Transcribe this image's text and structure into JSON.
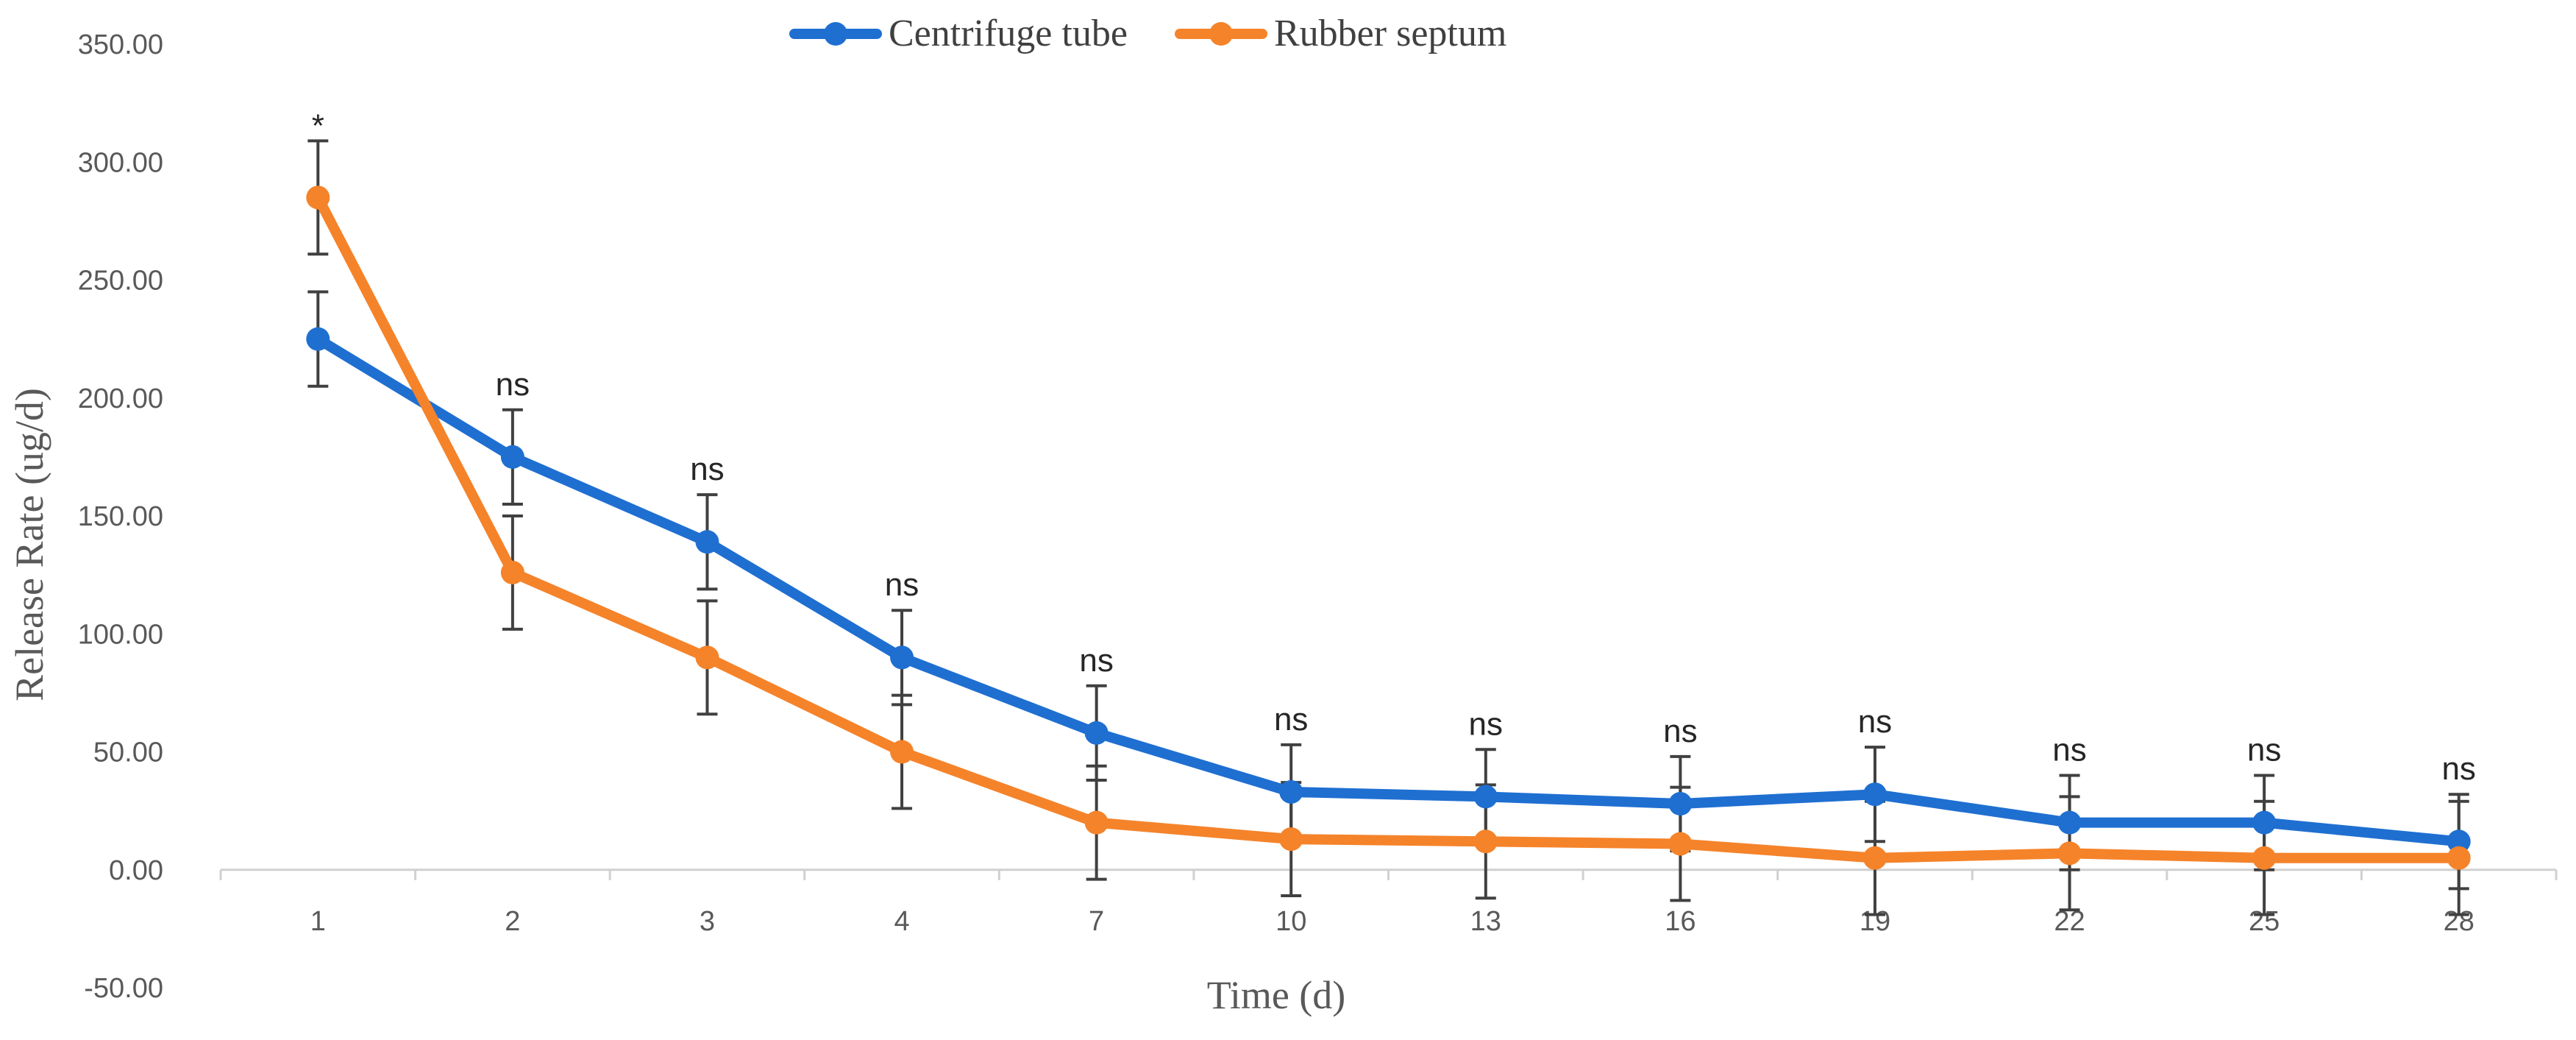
{
  "chart_data": {
    "type": "line",
    "title": "",
    "xlabel": "Time (d)",
    "ylabel": "Release Rate (ug/d)",
    "categories": [
      "1",
      "2",
      "3",
      "4",
      "7",
      "10",
      "13",
      "16",
      "19",
      "22",
      "25",
      "28"
    ],
    "ylim": [
      -50,
      350
    ],
    "yticks": [
      "-50.00",
      "0.00",
      "50.00",
      "100.00",
      "150.00",
      "200.00",
      "250.00",
      "300.00",
      "350.00"
    ],
    "grid": false,
    "legend_position": "top-center",
    "series": [
      {
        "name": "Centrifuge tube",
        "color": "#1f6fd1",
        "values": [
          225,
          175,
          139,
          90,
          58,
          33,
          31,
          28,
          32,
          20,
          20,
          12
        ],
        "error": [
          20,
          20,
          20,
          20,
          20,
          20,
          20,
          20,
          20,
          20,
          20,
          20
        ]
      },
      {
        "name": "Rubber septum",
        "color": "#f5832a",
        "values": [
          285,
          126,
          90,
          50,
          20,
          13,
          12,
          11,
          5,
          7,
          5,
          5
        ],
        "error": [
          24,
          24,
          24,
          24,
          24,
          24,
          24,
          24,
          24,
          24,
          24,
          24
        ]
      }
    ],
    "annotations": [
      "*",
      "ns",
      "ns",
      "ns",
      "ns",
      "ns",
      "ns",
      "ns",
      "ns",
      "ns",
      "ns",
      "ns"
    ],
    "error_bar_color": "#404040"
  }
}
